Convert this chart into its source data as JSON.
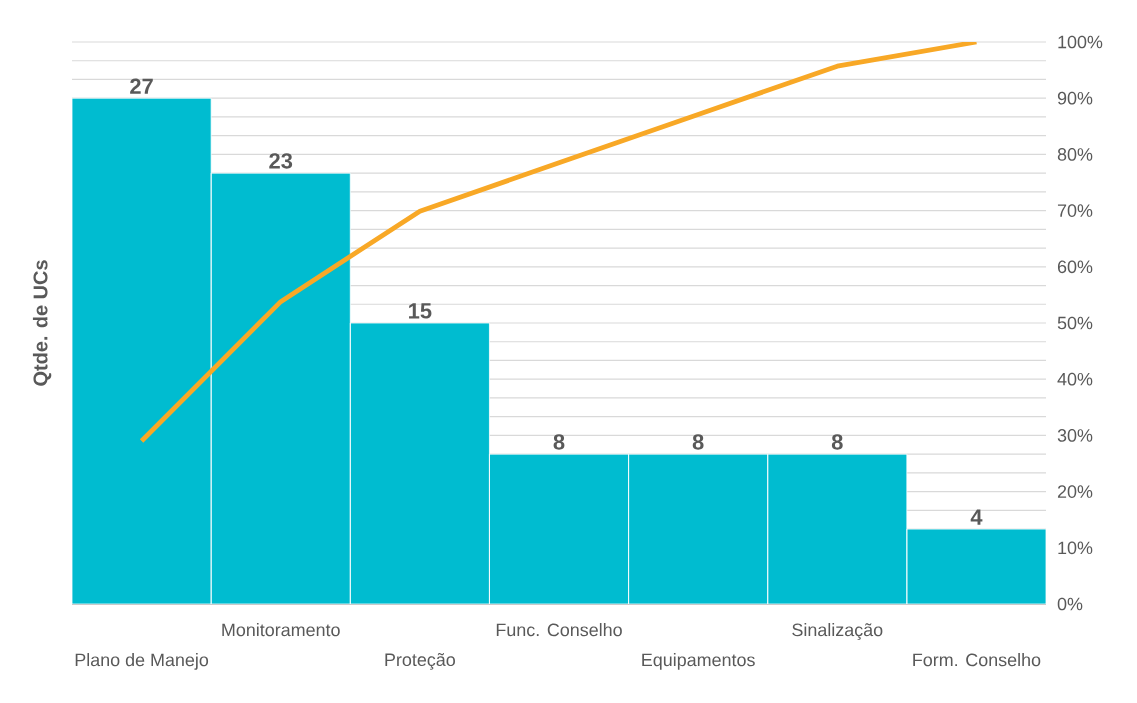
{
  "chart_data": {
    "type": "bar",
    "ylabel": "Qtde. de UCs",
    "categories": [
      "Plano de Manejo",
      "Monitoramento",
      "Proteção",
      "Func. Conselho",
      "Equipamentos",
      "Sinalização",
      "Form. Conselho"
    ],
    "series": [
      {
        "color": "#00bcd0",
        "values": [
          27,
          23,
          15,
          8,
          8,
          8,
          4
        ],
        "value_labels": [
          "27",
          "23",
          "15",
          "8",
          "8",
          "8",
          "4"
        ]
      },
      {
        "type": "line",
        "color": "#f8a826",
        "axis": "y2",
        "values": [
          29.0,
          53.8,
          69.9,
          78.5,
          87.1,
          95.7,
          100
        ]
      }
    ],
    "ylim": [
      0,
      30
    ],
    "yticks": [
      {
        "value": 0,
        "label": null
      },
      {
        "value": 1,
        "label": null
      },
      {
        "value": 2,
        "label": null
      },
      {
        "value": 3,
        "label": null
      },
      {
        "value": 4,
        "label": null
      },
      {
        "value": 5,
        "label": null
      },
      {
        "value": 6,
        "label": null
      },
      {
        "value": 7,
        "label": null
      },
      {
        "value": 8,
        "label": null
      },
      {
        "value": 9,
        "label": null
      },
      {
        "value": 10,
        "label": null
      },
      {
        "value": 11,
        "label": null
      },
      {
        "value": 12,
        "label": null
      },
      {
        "value": 13,
        "label": null
      },
      {
        "value": 14,
        "label": null
      },
      {
        "value": 15,
        "label": null
      },
      {
        "value": 16,
        "label": null
      },
      {
        "value": 17,
        "label": null
      },
      {
        "value": 18,
        "label": null
      },
      {
        "value": 19,
        "label": null
      },
      {
        "value": 20,
        "label": null
      },
      {
        "value": 21,
        "label": null
      },
      {
        "value": 22,
        "label": null
      },
      {
        "value": 23,
        "label": null
      },
      {
        "value": 24,
        "label": null
      },
      {
        "value": 25,
        "label": null
      },
      {
        "value": 26,
        "label": null
      },
      {
        "value": 27,
        "label": null
      },
      {
        "value": 28,
        "label": null
      },
      {
        "value": 29,
        "label": null
      },
      {
        "value": 30,
        "label": null
      }
    ],
    "y2lim": [
      0,
      100
    ],
    "y2ticks": [
      {
        "value": 0,
        "label": "0%"
      },
      {
        "value": 10,
        "label": "10%"
      },
      {
        "value": 20,
        "label": "20%"
      },
      {
        "value": 30,
        "label": "30%"
      },
      {
        "value": 40,
        "label": "40%"
      },
      {
        "value": 50,
        "label": "50%"
      },
      {
        "value": 60,
        "label": "60%"
      },
      {
        "value": 70,
        "label": "70%"
      },
      {
        "value": 80,
        "label": "80%"
      },
      {
        "value": 90,
        "label": "90%"
      },
      {
        "value": 100,
        "label": "100%"
      }
    ],
    "grid": "y"
  }
}
